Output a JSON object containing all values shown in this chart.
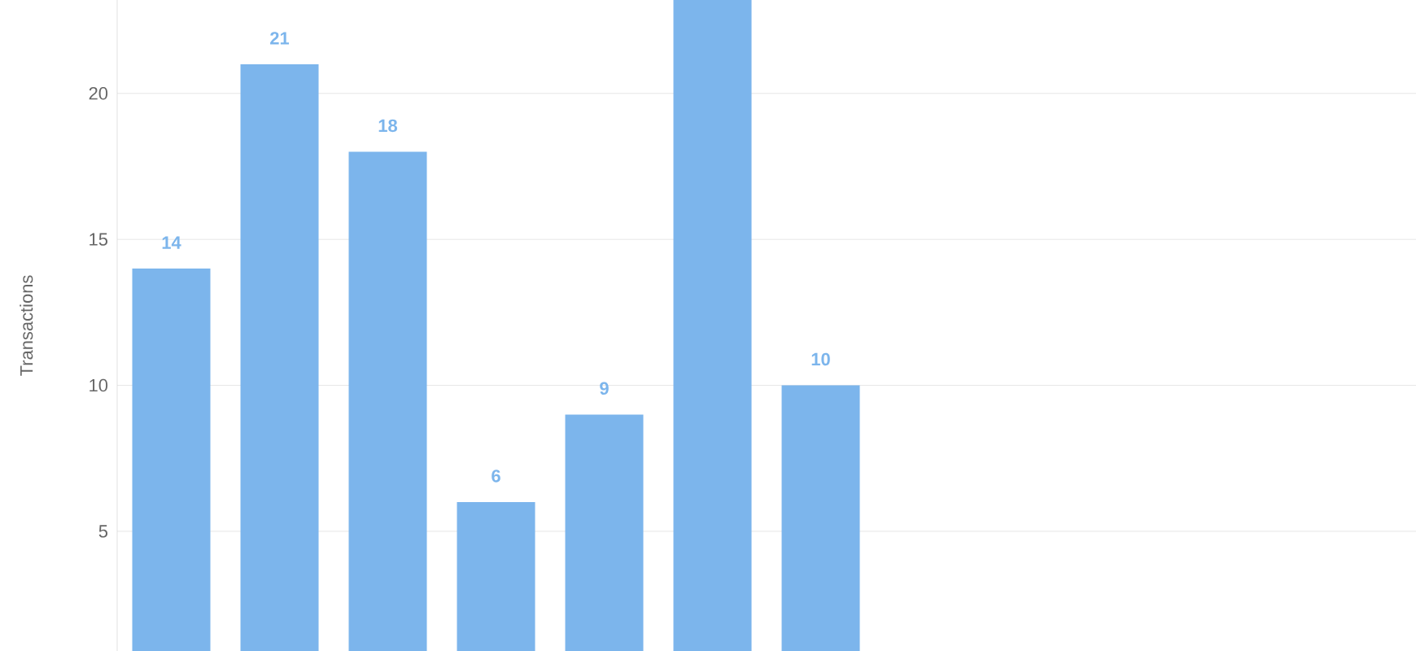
{
  "chart_data": {
    "type": "bar",
    "ylabel": "Transactions",
    "categories": [
      null,
      null,
      null,
      null,
      null,
      null,
      null,
      null,
      null,
      null,
      null,
      null
    ],
    "values": [
      14,
      21,
      18,
      6,
      9,
      23.2,
      10,
      null,
      null,
      null,
      null,
      null
    ],
    "value_labels": [
      "14",
      "21",
      "18",
      "6",
      "9",
      null,
      "10",
      null,
      null,
      null,
      null,
      null
    ],
    "color": "#7cb5ec",
    "ylim": [
      0.9,
      23.2
    ],
    "yticks": [
      5,
      10,
      15,
      20
    ],
    "grid": "y",
    "tick_labels": "y"
  }
}
